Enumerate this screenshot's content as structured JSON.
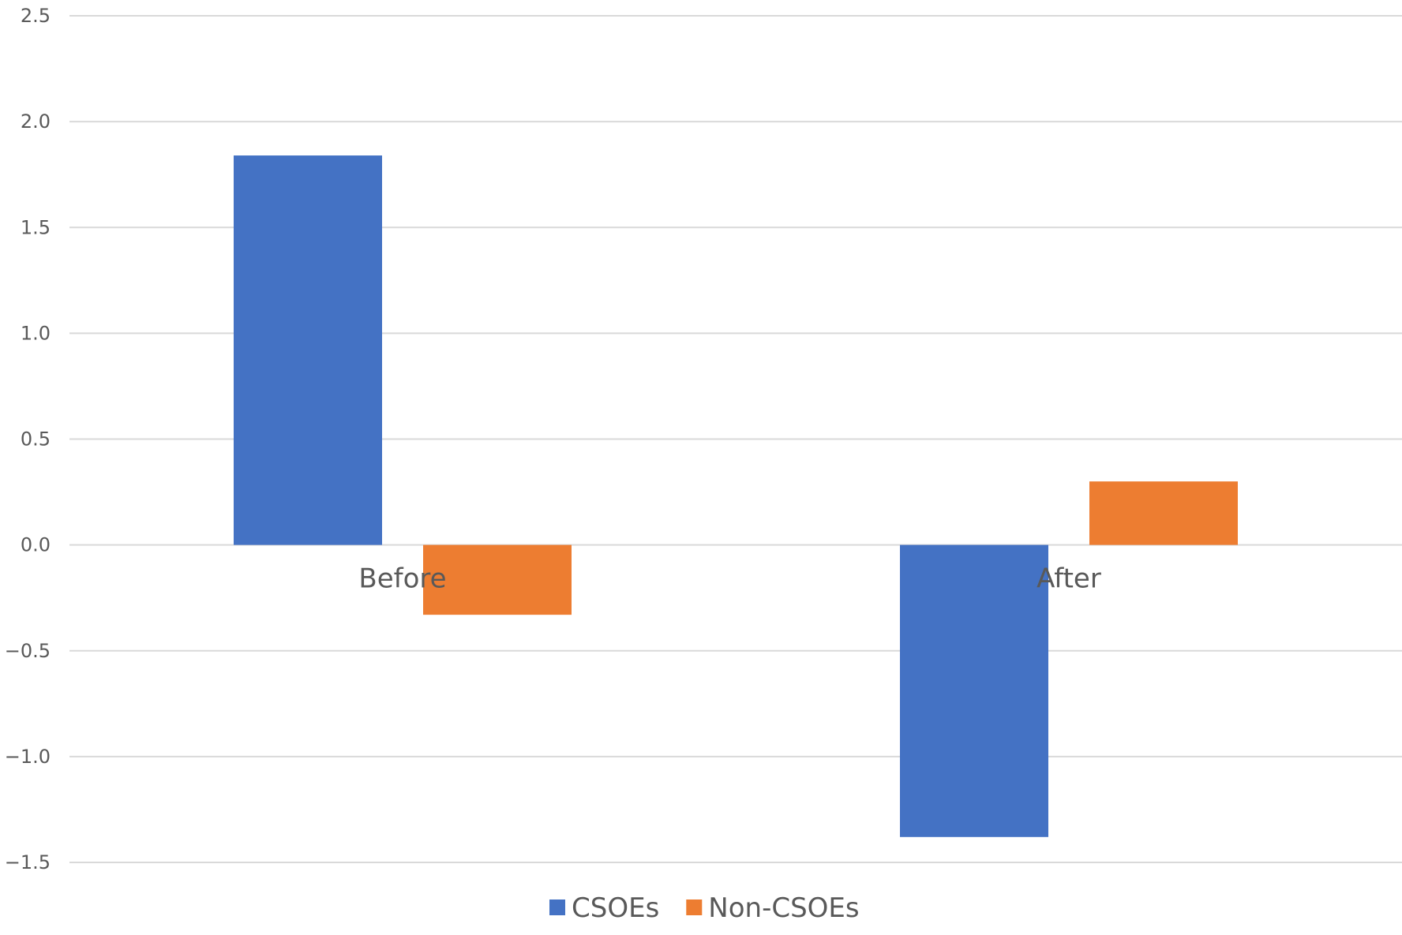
{
  "chart_data": {
    "type": "bar",
    "categories": [
      "Before",
      "After"
    ],
    "series": [
      {
        "name": "CSOEs",
        "values": [
          1.84,
          -1.38
        ],
        "color": "#4472C4"
      },
      {
        "name": "Non-CSOEs",
        "values": [
          -0.33,
          0.3
        ],
        "color": "#ED7D31"
      }
    ],
    "ylim": [
      -1.5,
      2.5
    ],
    "yticks": [
      "2.5",
      "2.0",
      "1.5",
      "1.0",
      "0.5",
      "0.0",
      "-0.5",
      "-1.0",
      "-1.5"
    ],
    "grid": true,
    "gridline_color": "#D9D9D9",
    "legend_position": "bottom",
    "title": "",
    "xlabel": "",
    "ylabel": ""
  }
}
